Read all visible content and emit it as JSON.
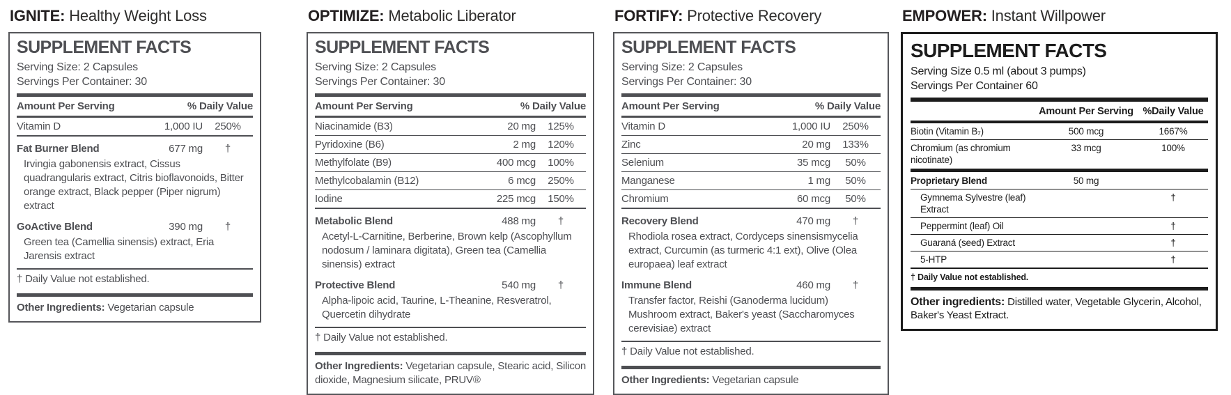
{
  "colors": {
    "gray_panel": "#55565a",
    "black_panel": "#1c1c1c",
    "title": "#231f20",
    "background": "#ffffff"
  },
  "panels": [
    {
      "name": "ignite",
      "title_bold": "IGNITE:",
      "title_rest": "Healthy Weight Loss",
      "facts_title": "SUPPLEMENT FACTS",
      "serving_lines": [
        "Serving Size: 2 Capsules",
        "Servings Per Container: 30"
      ],
      "header": {
        "amount_label": "Amount Per Serving",
        "daily_label": "% Daily Value"
      },
      "rows": [
        {
          "name": "Vitamin D",
          "amount": "1,000 IU",
          "daily": "250%"
        }
      ],
      "blends": [
        {
          "name": "Fat Burner Blend",
          "amount": "677 mg",
          "daily": "†",
          "ingredients": "Irvingia gabonensis extract, Cissus quadrangularis extract, Citris bioflavonoids, Bitter orange extract, Black pepper (Piper nigrum) extract"
        },
        {
          "name": "GoActive Blend",
          "amount": "390 mg",
          "daily": "†",
          "ingredients": "Green tea (Camellia sinensis) extract, Eria Jarensis extract"
        }
      ],
      "footnote": "† Daily Value not established.",
      "other_label": "Other Ingredients:",
      "other_text": "Vegetarian capsule"
    },
    {
      "name": "optimize",
      "title_bold": "OPTIMIZE:",
      "title_rest": "Metabolic Liberator",
      "facts_title": "SUPPLEMENT FACTS",
      "serving_lines": [
        "Serving Size: 2 Capsules",
        "Servings Per Container: 30"
      ],
      "header": {
        "amount_label": "Amount Per Serving",
        "daily_label": "% Daily Value"
      },
      "rows": [
        {
          "name": "Niacinamide (B3)",
          "amount": "20 mg",
          "daily": "125%"
        },
        {
          "name": "Pyridoxine (B6)",
          "amount": "2 mg",
          "daily": "120%"
        },
        {
          "name": "Methylfolate (B9)",
          "amount": "400 mcg",
          "daily": "100%"
        },
        {
          "name": "Methylcobalamin (B12)",
          "amount": "6 mcg",
          "daily": "250%"
        },
        {
          "name": "Iodine",
          "amount": "225 mcg",
          "daily": "150%"
        }
      ],
      "blends": [
        {
          "name": "Metabolic Blend",
          "amount": "488 mg",
          "daily": "†",
          "ingredients": "Acetyl-L-Carnitine, Berberine, Brown kelp (Ascophyllum nodosum / laminara digitata), Green tea (Camellia sinensis) extract"
        },
        {
          "name": "Protective Blend",
          "amount": "540 mg",
          "daily": "†",
          "ingredients": "Alpha-lipoic acid, Taurine, L-Theanine, Resveratrol, Quercetin dihydrate"
        }
      ],
      "footnote": "† Daily Value not established.",
      "other_label": "Other Ingredients:",
      "other_text": "Vegetarian capsule, Stearic acid, Silicon dioxide, Magnesium silicate, PRUV®"
    },
    {
      "name": "fortify",
      "title_bold": "FORTIFY:",
      "title_rest": "Protective Recovery",
      "facts_title": "SUPPLEMENT FACTS",
      "serving_lines": [
        "Serving Size: 2 Capsules",
        "Servings Per Container: 30"
      ],
      "header": {
        "amount_label": "Amount Per Serving",
        "daily_label": "% Daily Value"
      },
      "rows": [
        {
          "name": "Vitamin D",
          "amount": "1,000 IU",
          "daily": "250%"
        },
        {
          "name": "Zinc",
          "amount": "20 mg",
          "daily": "133%"
        },
        {
          "name": "Selenium",
          "amount": "35 mcg",
          "daily": "50%"
        },
        {
          "name": "Manganese",
          "amount": "1 mg",
          "daily": "50%"
        },
        {
          "name": "Chromium",
          "amount": "60 mcg",
          "daily": "50%"
        }
      ],
      "blends": [
        {
          "name": "Recovery Blend",
          "amount": "470 mg",
          "daily": "†",
          "ingredients": "Rhodiola rosea extract, Cordyceps sinensismycelia extract, Curcumin (as turmeric 4:1 ext), Olive (Olea europaea) leaf extract"
        },
        {
          "name": "Immune Blend",
          "amount": "460 mg",
          "daily": "†",
          "ingredients": "Transfer factor, Reishi (Ganoderma lucidum) Mushroom extract, Baker's yeast (Saccharomyces cerevisiae) extract"
        }
      ],
      "footnote": "† Daily Value not established.",
      "other_label": "Other Ingredients:",
      "other_text": "Vegetarian capsule"
    },
    {
      "name": "empower",
      "type": "black",
      "title_bold": "EMPOWER:",
      "title_rest": "Instant Willpower",
      "facts_title": "SUPPLEMENT FACTS",
      "serving_lines": [
        "Serving Size 0.5 ml (about 3 pumps)",
        "Servings Per Container 60"
      ],
      "header": {
        "amount_label": "Amount Per Serving",
        "daily_label": "%Daily Value"
      },
      "rows": [
        {
          "name": "Biotin (Vitamin B₇)",
          "amount": "500 mcg",
          "daily": "1667%"
        },
        {
          "name": "Chromium (as chromium nicotinate)",
          "amount": "33 mcg",
          "daily": "100%"
        }
      ],
      "blend": {
        "name": "Proprietary Blend",
        "amount": "50 mg",
        "items": [
          {
            "name": "Gymnema Sylvestre (leaf) Extract",
            "daily": "†"
          },
          {
            "name": "Peppermint (leaf) Oil",
            "daily": "†"
          },
          {
            "name": "Guaraná (seed) Extract",
            "daily": "†"
          },
          {
            "name": "5-HTP",
            "daily": "†"
          }
        ]
      },
      "footnote": "† Daily Value not established.",
      "other_label": "Other ingredients:",
      "other_text": "Distilled water, Vegetable Glycerin, Alcohol, Baker's Yeast Extract."
    }
  ]
}
